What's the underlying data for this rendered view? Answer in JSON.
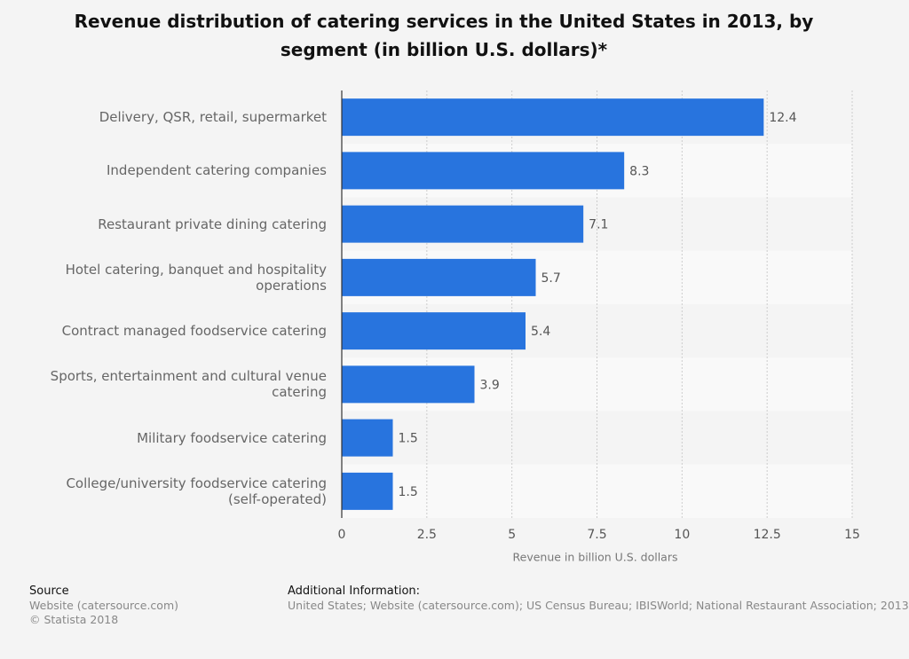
{
  "chart_data": {
    "type": "bar",
    "orientation": "horizontal",
    "title": "Revenue distribution of catering services in the United States in 2013, by segment (in billion U.S. dollars)*",
    "categories": [
      "Delivery, QSR, retail, supermarket",
      "Independent catering companies",
      "Restaurant private dining catering",
      "Hotel catering, banquet and hospitality operations",
      "Contract managed foodservice catering",
      "Sports, entertainment and cultural venue catering",
      "Military foodservice catering",
      "College/university foodservice catering (self-operated)"
    ],
    "values": [
      12.4,
      8.3,
      7.1,
      5.7,
      5.4,
      3.9,
      1.5,
      1.5
    ],
    "color": "#2874de",
    "xlabel": "Revenue in billion U.S. dollars",
    "xlim": [
      0,
      15
    ],
    "xticks": [
      0,
      2.5,
      5,
      7.5,
      10,
      12.5,
      15
    ],
    "grid": true
  },
  "footer": {
    "source_heading": "Source",
    "source": "Website (catersource.com)",
    "copyright": "© Statista 2018",
    "info_heading": "Additional Information:",
    "info": "United States; Website (catersource.com); US Census Bureau; IBISWorld; National Restaurant Association; 2013"
  }
}
